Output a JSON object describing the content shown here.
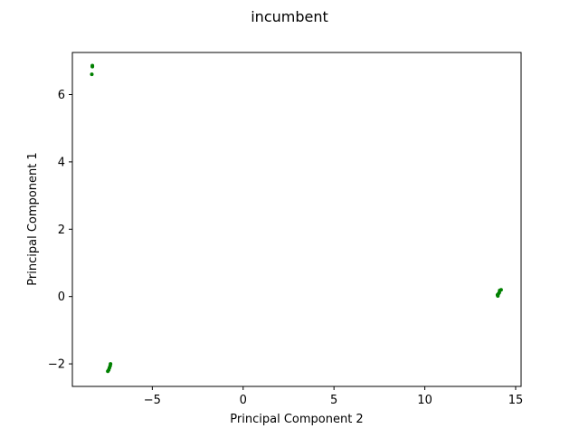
{
  "chart_data": {
    "type": "scatter",
    "title": "incumbent",
    "xlabel": "Principal Component 2",
    "ylabel": "Principal Component 1",
    "xlim": [
      -9.4,
      15.3
    ],
    "ylim": [
      -2.67,
      7.25
    ],
    "xticks": [
      -5,
      0,
      5,
      10,
      15
    ],
    "xtick_labels": [
      "−5",
      "0",
      "5",
      "10",
      "15"
    ],
    "yticks": [
      -2,
      0,
      2,
      4,
      6
    ],
    "yticks_labels": [
      "−2",
      "0",
      "2",
      "4",
      "6"
    ],
    "grid": false,
    "legend": "none",
    "series": [
      {
        "color": "#008000",
        "points": [
          {
            "x": -8.3,
            "y": 6.86
          },
          {
            "x": -8.3,
            "y": 6.83
          },
          {
            "x": -8.33,
            "y": 6.6
          },
          {
            "x": -7.3,
            "y": -2.0
          },
          {
            "x": -7.32,
            "y": -2.06
          },
          {
            "x": -7.36,
            "y": -2.12
          },
          {
            "x": -7.4,
            "y": -2.18
          },
          {
            "x": -7.45,
            "y": -2.22
          },
          {
            "x": 14.0,
            "y": 0.05
          },
          {
            "x": 14.05,
            "y": 0.08
          },
          {
            "x": 14.1,
            "y": 0.12
          },
          {
            "x": 14.12,
            "y": 0.18
          },
          {
            "x": 14.2,
            "y": 0.2
          },
          {
            "x": 14.02,
            "y": 0.02
          }
        ]
      }
    ]
  }
}
